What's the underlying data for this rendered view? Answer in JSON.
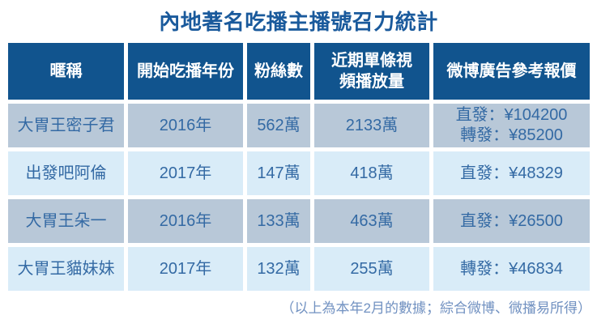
{
  "title": "內地著名吃播主播號召力統計",
  "table": {
    "headers": [
      "暱稱",
      "開始吃播年份",
      "粉絲數",
      "近期單條視\n頻播放量",
      "微博廣告參考報價"
    ],
    "rows": [
      {
        "cells": [
          "大胃王密子君",
          "2016年",
          "562萬",
          "2133萬",
          "直發：¥104200\n轉發：¥85200"
        ]
      },
      {
        "cells": [
          "出發吧阿倫",
          "2017年",
          "147萬",
          "418萬",
          "直發：¥48329"
        ]
      },
      {
        "cells": [
          "大胃王朵一",
          "2016年",
          "133萬",
          "463萬",
          "直發：¥26500"
        ]
      },
      {
        "cells": [
          "大胃王貓妹妹",
          "2017年",
          "132萬",
          "255萬",
          "轉發：¥46834"
        ]
      }
    ]
  },
  "footnote": "（以上為本年2月的數據；綜合微博、微播易所得）",
  "colors": {
    "title_text": "#1a5a9c",
    "header_bg": "#11548e",
    "header_text": "#ffffff",
    "row_odd_bg": "#b8c8d8",
    "row_even_bg": "#d9ecf8",
    "cell_text": "#346aa4",
    "footnote_text": "#7191c1"
  },
  "chart_data": {
    "type": "table",
    "title": "內地著名吃播主播號召力統計",
    "columns": [
      "暱稱",
      "開始吃播年份",
      "粉絲數",
      "近期單條視頻播放量",
      "微博廣告參考報價"
    ],
    "rows": [
      [
        "大胃王密子君",
        "2016年",
        "562萬",
        "2133萬",
        "直發：¥104200；轉發：¥85200"
      ],
      [
        "出發吧阿倫",
        "2017年",
        "147萬",
        "418萬",
        "直發：¥48329"
      ],
      [
        "大胃王朵一",
        "2016年",
        "133萬",
        "463萬",
        "直發：¥26500"
      ],
      [
        "大胃王貓妹妹",
        "2017年",
        "132萬",
        "255萬",
        "轉發：¥46834"
      ]
    ],
    "note": "（以上為本年2月的數據；綜合微博、微播易所得）"
  }
}
